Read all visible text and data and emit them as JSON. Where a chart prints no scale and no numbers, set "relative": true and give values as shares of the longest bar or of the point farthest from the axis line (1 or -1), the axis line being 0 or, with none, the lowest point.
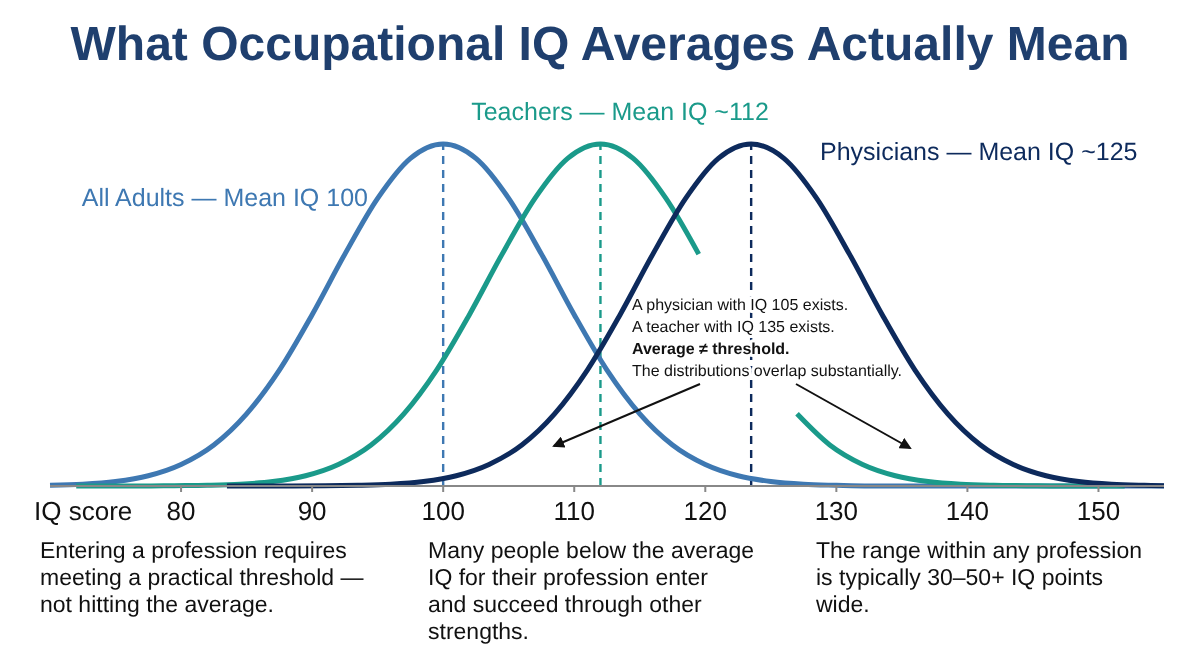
{
  "chart_data": {
    "type": "line",
    "relative": true,
    "title": "What Occupational IQ Averages Actually Mean",
    "xlabel": "IQ score",
    "xlim": [
      70,
      155
    ],
    "xticks": [
      80,
      90,
      100,
      110,
      120,
      130,
      140,
      150
    ],
    "grid": false,
    "legend": false,
    "marker": "none",
    "line_style": "solid",
    "series": [
      {
        "name": "All Adults — Mean IQ 100",
        "color": "#3e78b2",
        "x": [
          70,
          72.5,
          75,
          77.5,
          80,
          82.5,
          85,
          87.5,
          90,
          92.5,
          95,
          97.5,
          100,
          102.5,
          105,
          107.5,
          110,
          112.5,
          115,
          117.5,
          120,
          122.5,
          125,
          127.5,
          130,
          132.5,
          135,
          137.5,
          140,
          142.5,
          145,
          147.5,
          150,
          152.5,
          155
        ],
        "values": [
          0.002,
          0.005,
          0.013,
          0.03,
          0.063,
          0.12,
          0.211,
          0.339,
          0.501,
          0.678,
          0.841,
          0.958,
          1,
          0.958,
          0.841,
          0.678,
          0.501,
          0.339,
          0.211,
          0.12,
          0.063,
          0.03,
          0.013,
          0.005,
          0.002,
          0,
          0,
          0,
          0,
          0,
          0,
          0,
          0,
          0,
          0
        ]
      },
      {
        "name": "Teachers — Mean IQ ~112",
        "color": "#1a9a8a",
        "x": [
          72,
          74.5,
          77,
          79.5,
          82,
          84.5,
          87,
          89.5,
          92,
          94.5,
          97,
          99.5,
          102,
          104.5,
          107,
          109.5,
          112,
          114.5,
          117,
          119.5,
          121.5,
          123,
          125.5,
          127,
          129.5,
          132,
          134.5,
          137,
          139.5,
          142,
          144.5,
          147,
          152
        ],
        "values": [
          0,
          0,
          0,
          0.001,
          0.002,
          0.005,
          0.013,
          0.03,
          0.063,
          0.12,
          0.211,
          0.339,
          0.501,
          0.678,
          0.841,
          0.958,
          1,
          0.958,
          0.841,
          0.678,
          null,
          null,
          null,
          0.211,
          0.12,
          0.063,
          0.03,
          0.013,
          0.005,
          0.002,
          0.001,
          0,
          0
        ]
      },
      {
        "name": "Physicians — Mean IQ ~125",
        "color": "#0d2a5c",
        "x": [
          83.5,
          88.5,
          93.5,
          96,
          98.5,
          101,
          103.5,
          106,
          108.5,
          111,
          113.5,
          116,
          118.5,
          121,
          123.5,
          126,
          128.5,
          131,
          133.5,
          136,
          138.5,
          141,
          143.5,
          146,
          148.5,
          151,
          153.5,
          155
        ],
        "values": [
          0,
          0,
          0.002,
          0.005,
          0.013,
          0.03,
          0.063,
          0.12,
          0.211,
          0.339,
          0.501,
          0.678,
          0.841,
          0.958,
          1,
          0.958,
          0.841,
          0.678,
          0.501,
          0.339,
          0.211,
          0.12,
          0.063,
          0.03,
          0.013,
          0.005,
          0.002,
          0.001
        ]
      }
    ],
    "ref_lines": [
      {
        "axis": "x",
        "value": 100,
        "color": "#3e78b2",
        "line_style": "dashed"
      },
      {
        "axis": "x",
        "value": 112,
        "color": "#1a9a8a",
        "line_style": "dashed"
      },
      {
        "axis": "x",
        "value": 123.5,
        "color": "#0d2a5c",
        "line_style": "dashed"
      }
    ],
    "annotations": [
      "A physician with IQ 105 exists.",
      "A teacher with IQ 135 exists.",
      "Average ≠ threshold.",
      "The distributions overlap substantially.",
      "Entering a profession requires meeting a practical threshold — not hitting the average.",
      "Many people below the average IQ for their profession enter and succeed through other strengths.",
      "The range within any profession is typically 30–50+ IQ points wide."
    ]
  }
}
